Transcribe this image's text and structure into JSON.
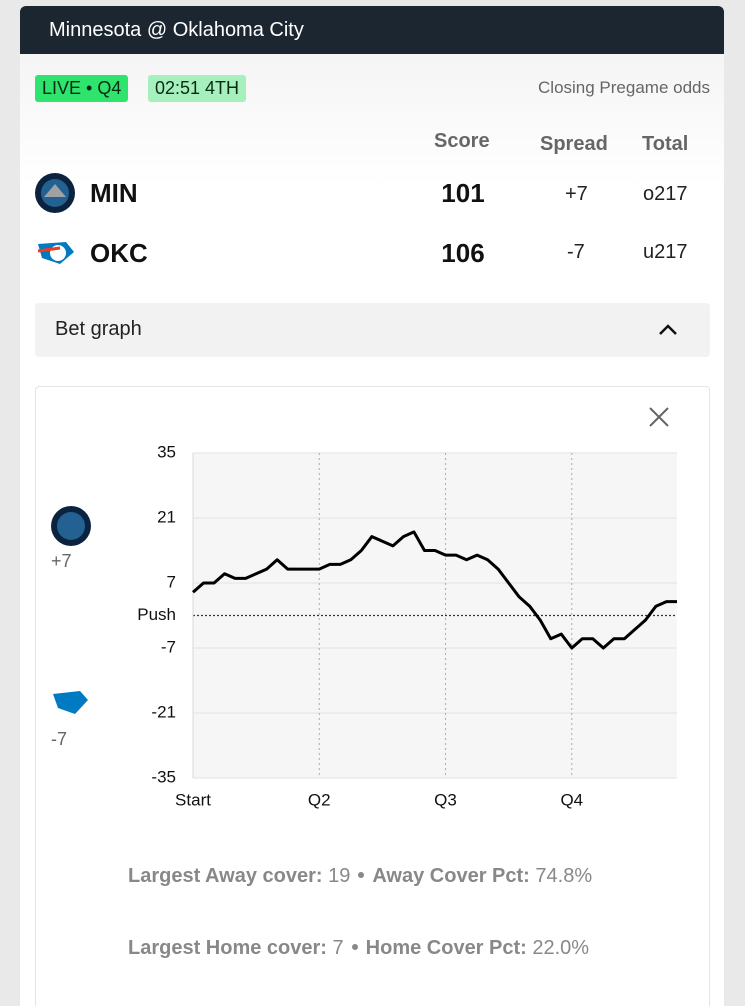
{
  "header": {
    "title": "Minnesota @ Oklahoma City"
  },
  "status": {
    "live": "LIVE • Q4",
    "clock": "02:51 4TH",
    "odds_note": "Closing Pregame odds"
  },
  "table": {
    "columns": [
      "Score",
      "Spread",
      "Total"
    ],
    "rows": [
      {
        "team": "MIN",
        "score": 101,
        "spread": "+7",
        "total": "o217"
      },
      {
        "team": "OKC",
        "score": 106,
        "spread": "-7",
        "total": "u217"
      }
    ]
  },
  "bet_graph": {
    "label": "Bet graph"
  },
  "chart_data": {
    "type": "line",
    "away_label": "+7",
    "home_label": "-7",
    "x": [
      0,
      1,
      2,
      3,
      4,
      5,
      6,
      7,
      8,
      9,
      10,
      11,
      12,
      13,
      14,
      15,
      16,
      17,
      18,
      19,
      20,
      21,
      22,
      23,
      24,
      25,
      26,
      27,
      28,
      29,
      30,
      31,
      32,
      33,
      34,
      35,
      36,
      37,
      38,
      39,
      40,
      41,
      42,
      43,
      44,
      45,
      46
    ],
    "series": [
      {
        "color": "#000000",
        "values": [
          5,
          7,
          7,
          9,
          8,
          8,
          9,
          10,
          12,
          10,
          10,
          10,
          10,
          11,
          11,
          12,
          14,
          17,
          16,
          15,
          17,
          18,
          14,
          14,
          13,
          13,
          12,
          13,
          12,
          10,
          7,
          4,
          2,
          -1,
          -5,
          -4,
          -7,
          -5,
          -5,
          -7,
          -5,
          -5,
          -3,
          -1,
          2,
          3,
          3
        ]
      }
    ],
    "xlim": [
      0,
      46
    ],
    "xticks": [
      {
        "value": 0,
        "label": "Start"
      },
      {
        "value": 12,
        "label": "Q2"
      },
      {
        "value": 24,
        "label": "Q3"
      },
      {
        "value": 36,
        "label": "Q4"
      }
    ],
    "ylim": [
      -35,
      35
    ],
    "yticks": [
      -35,
      -21,
      -7,
      {
        "value": 0,
        "label": "Push"
      },
      7,
      21,
      35
    ],
    "grid": true
  },
  "stats": [
    [
      {
        "label": "Largest Away cover:",
        "value": 19
      },
      {
        "label": "Away Cover Pct:",
        "value": "74.8%"
      }
    ],
    [
      {
        "label": "Largest Home cover:",
        "value": 7
      },
      {
        "label": "Home Cover Pct:",
        "value": "22.0%"
      }
    ]
  ]
}
